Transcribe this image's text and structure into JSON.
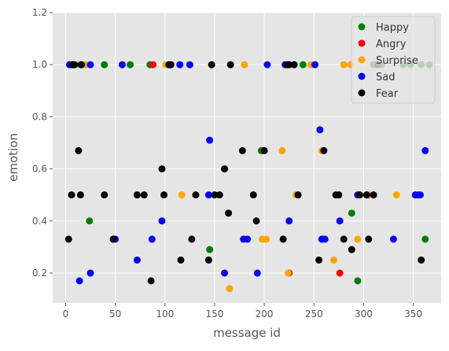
{
  "chart_data": {
    "type": "scatter",
    "title": "",
    "xlabel": "message id",
    "ylabel": "emotion",
    "xlim": [
      -13,
      378
    ],
    "ylim": [
      0.085,
      1.2
    ],
    "xticks": [
      0,
      50,
      100,
      150,
      200,
      250,
      300,
      350
    ],
    "yticks": [
      0.2,
      0.4,
      0.6,
      0.8,
      1.0,
      1.2
    ],
    "xtick_labels": [
      "0",
      "50",
      "100",
      "150",
      "200",
      "250",
      "300",
      "350"
    ],
    "ytick_labels": [
      "0.2",
      "0.4",
      "0.6",
      "0.8",
      "1.0",
      "1.2"
    ],
    "grid": true,
    "legend_position": "top-right",
    "series": [
      {
        "name": "Happy",
        "color": "#008000",
        "points": [
          [
            15,
            1.0
          ],
          [
            24,
            0.4
          ],
          [
            39,
            1.0
          ],
          [
            65,
            1.0
          ],
          [
            85,
            1.0
          ],
          [
            145,
            0.29
          ],
          [
            197,
            0.67
          ],
          [
            239,
            1.0
          ],
          [
            258,
            0.33
          ],
          [
            288,
            0.43
          ],
          [
            294,
            0.17
          ],
          [
            310,
            1.0
          ],
          [
            318,
            1.0
          ],
          [
            340,
            1.0
          ],
          [
            347,
            1.0
          ],
          [
            358,
            1.0
          ],
          [
            362,
            0.33
          ],
          [
            366,
            1.0
          ]
        ]
      },
      {
        "name": "Angry",
        "color": "#ff0000",
        "points": [
          [
            88,
            1.0
          ],
          [
            225,
            0.2
          ],
          [
            276,
            0.2
          ]
        ]
      },
      {
        "name": "Surprise",
        "color": "#ffa500",
        "points": [
          [
            8,
            1.0
          ],
          [
            20,
            1.0
          ],
          [
            48,
            0.33
          ],
          [
            101,
            1.0
          ],
          [
            117,
            0.5
          ],
          [
            165,
            0.14
          ],
          [
            180,
            1.0
          ],
          [
            198,
            0.33
          ],
          [
            202,
            0.33
          ],
          [
            218,
            0.67
          ],
          [
            224,
            0.2
          ],
          [
            232,
            0.5
          ],
          [
            247,
            1.0
          ],
          [
            258,
            0.67
          ],
          [
            270,
            0.25
          ],
          [
            280,
            1.0
          ],
          [
            287,
            1.0
          ],
          [
            294,
            0.33
          ],
          [
            305,
            0.5
          ],
          [
            333,
            0.5
          ]
        ]
      },
      {
        "name": "Sad",
        "color": "#0000ff",
        "points": [
          [
            4,
            1.0
          ],
          [
            14,
            0.17
          ],
          [
            25,
            1.0
          ],
          [
            25,
            0.2
          ],
          [
            50,
            0.33
          ],
          [
            57,
            1.0
          ],
          [
            72,
            0.25
          ],
          [
            87,
            0.33
          ],
          [
            97,
            0.4
          ],
          [
            115,
            1.0
          ],
          [
            125,
            1.0
          ],
          [
            145,
            0.71
          ],
          [
            144,
            0.5
          ],
          [
            160,
            0.2
          ],
          [
            179,
            0.33
          ],
          [
            183,
            0.33
          ],
          [
            193,
            0.2
          ],
          [
            203,
            1.0
          ],
          [
            221,
            1.0
          ],
          [
            225,
            0.4
          ],
          [
            251,
            1.0
          ],
          [
            256,
            0.75
          ],
          [
            258,
            0.33
          ],
          [
            261,
            0.33
          ],
          [
            276,
            0.4
          ],
          [
            294,
            0.5
          ],
          [
            330,
            0.33
          ],
          [
            352,
            0.5
          ],
          [
            355,
            0.5
          ],
          [
            357,
            0.5
          ],
          [
            362,
            0.67
          ]
        ]
      },
      {
        "name": "Fear",
        "color": "#000000",
        "points": [
          [
            3,
            0.33
          ],
          [
            6,
            0.5
          ],
          [
            7,
            1.0
          ],
          [
            9,
            1.0
          ],
          [
            13,
            0.67
          ],
          [
            15,
            0.5
          ],
          [
            16,
            1.0
          ],
          [
            39,
            0.5
          ],
          [
            48,
            0.33
          ],
          [
            72,
            0.5
          ],
          [
            79,
            0.5
          ],
          [
            86,
            0.17
          ],
          [
            97,
            0.6
          ],
          [
            99,
            0.5
          ],
          [
            104,
            1.0
          ],
          [
            106,
            1.0
          ],
          [
            116,
            0.25
          ],
          [
            127,
            0.33
          ],
          [
            131,
            0.5
          ],
          [
            144,
            0.25
          ],
          [
            147,
            1.0
          ],
          [
            150,
            0.5
          ],
          [
            155,
            0.5
          ],
          [
            160,
            0.6
          ],
          [
            164,
            0.43
          ],
          [
            166,
            1.0
          ],
          [
            178,
            0.67
          ],
          [
            189,
            0.5
          ],
          [
            192,
            0.4
          ],
          [
            200,
            0.67
          ],
          [
            219,
            0.33
          ],
          [
            223,
            1.0
          ],
          [
            225,
            1.0
          ],
          [
            230,
            1.0
          ],
          [
            234,
            0.5
          ],
          [
            255,
            0.25
          ],
          [
            260,
            0.67
          ],
          [
            272,
            0.5
          ],
          [
            275,
            0.5
          ],
          [
            280,
            0.33
          ],
          [
            288,
            0.29
          ],
          [
            296,
            0.5
          ],
          [
            303,
            0.5
          ],
          [
            305,
            0.33
          ],
          [
            310,
            0.5
          ],
          [
            314,
            1.0
          ],
          [
            358,
            0.25
          ]
        ]
      }
    ]
  }
}
